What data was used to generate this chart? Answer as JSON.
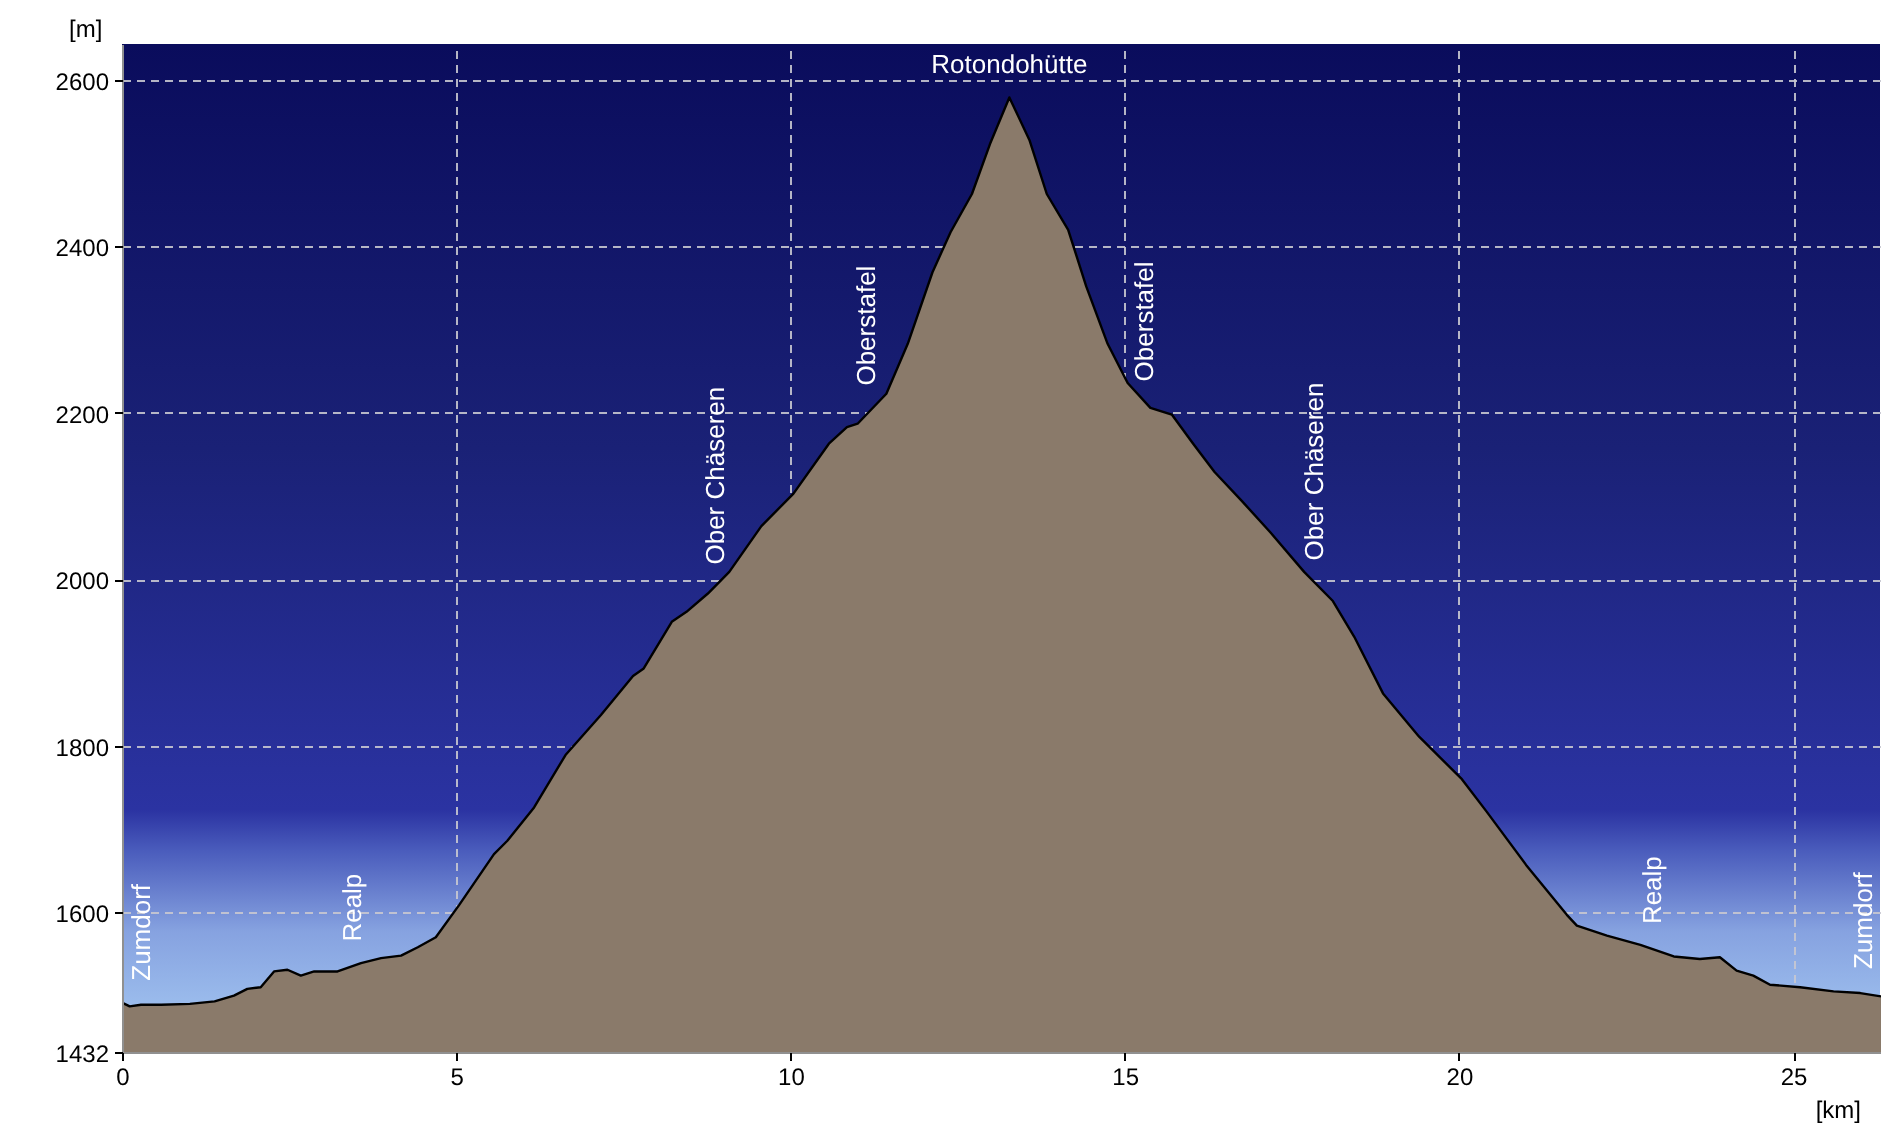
{
  "chart_data": {
    "type": "area",
    "xlabel": "[km]",
    "ylabel": "[m]",
    "x": [
      0.0,
      0.1,
      0.27,
      0.57,
      1.0,
      1.37,
      1.66,
      1.86,
      2.06,
      2.26,
      2.46,
      2.66,
      2.86,
      3.21,
      3.56,
      3.86,
      4.16,
      4.41,
      4.68,
      5.03,
      5.55,
      5.75,
      6.15,
      6.62,
      7.15,
      7.63,
      7.79,
      8.21,
      8.43,
      8.75,
      9.07,
      9.55,
      10.03,
      10.56,
      10.83,
      10.99,
      11.42,
      11.74,
      12.11,
      12.38,
      12.7,
      12.97,
      13.26,
      13.56,
      13.82,
      14.14,
      14.41,
      14.73,
      15.03,
      15.37,
      15.69,
      16.01,
      16.33,
      16.74,
      17.16,
      17.67,
      18.1,
      18.42,
      18.85,
      19.39,
      20.03,
      20.4,
      20.99,
      21.6,
      21.75,
      22.2,
      22.7,
      23.2,
      23.59,
      23.89,
      24.14,
      24.39,
      24.64,
      25.09,
      25.59,
      25.99,
      26.3
    ],
    "series": [
      {
        "color": "#8a7a6a",
        "values": [
          1492,
          1488,
          1490,
          1490,
          1491,
          1494,
          1501,
          1509,
          1511,
          1530,
          1532,
          1525,
          1530,
          1530,
          1540,
          1546,
          1549,
          1559,
          1571,
          1610,
          1671,
          1687,
          1727,
          1790,
          1838,
          1885,
          1894,
          1950,
          1962,
          1984,
          2010,
          2065,
          2104,
          2164,
          2184,
          2188,
          2224,
          2284,
          2370,
          2418,
          2464,
          2524,
          2580,
          2529,
          2464,
          2421,
          2353,
          2284,
          2237,
          2207,
          2199,
          2164,
          2130,
          2095,
          2058,
          2010,
          1975,
          1932,
          1864,
          1812,
          1761,
          1722,
          1658,
          1598,
          1585,
          1573,
          1562,
          1548,
          1545,
          1547,
          1531,
          1525,
          1514,
          1511,
          1506,
          1504,
          1500
        ]
      }
    ],
    "xlim": [
      0,
      26.3
    ],
    "ylim": [
      1432,
      2643
    ],
    "xticks": [
      0,
      5,
      10,
      15,
      20,
      25
    ],
    "yticks": [
      1432,
      1600,
      1800,
      2000,
      2200,
      2400,
      2600
    ],
    "grid": true,
    "annotations": [
      {
        "text": "Zumdorf",
        "x": 0.12,
        "y": 1490
      },
      {
        "text": "Realp",
        "x": 3.43,
        "y": 1537
      },
      {
        "text": "Ober Chäseren",
        "x": 8.85,
        "y": 1990
      },
      {
        "text": "Oberstafel",
        "x": 11.12,
        "y": 2205
      },
      {
        "text": "Rotondohütte",
        "x": 13.26,
        "y": 2580
      },
      {
        "text": "Oberstafel",
        "x": 15.28,
        "y": 2210
      },
      {
        "text": "Ober Chäseren",
        "x": 17.82,
        "y": 1995
      },
      {
        "text": "Realp",
        "x": 22.88,
        "y": 1558
      },
      {
        "text": "Zumdorf",
        "x": 26.04,
        "y": 1504
      }
    ]
  }
}
